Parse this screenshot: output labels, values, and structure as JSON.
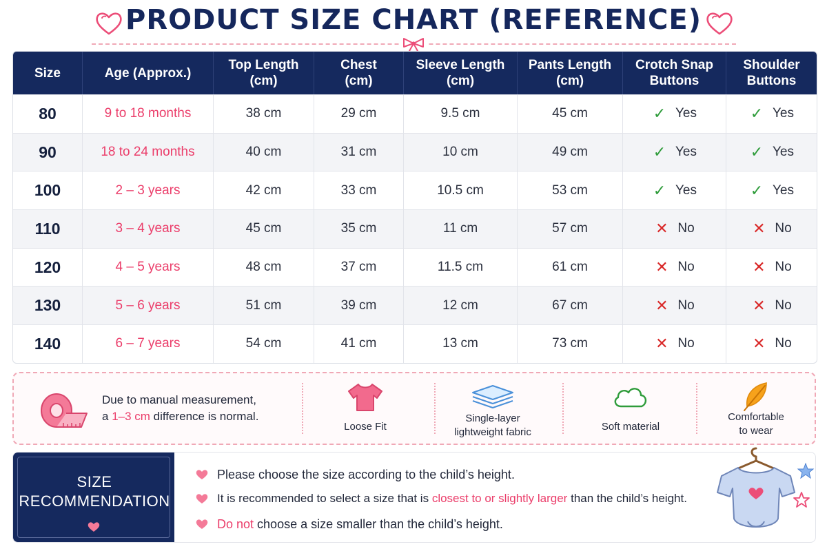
{
  "header": {
    "title": "PRODUCT SIZE CHART (REFERENCE)"
  },
  "table": {
    "headers": [
      [
        "Size"
      ],
      [
        "Age (Approx.)"
      ],
      [
        "Top Length",
        "(cm)"
      ],
      [
        "Chest",
        "(cm)"
      ],
      [
        "Sleeve Length",
        "(cm)"
      ],
      [
        "Pants Length",
        "(cm)"
      ],
      [
        "Crotch Snap",
        "Buttons"
      ],
      [
        "Shoulder",
        "Buttons"
      ]
    ],
    "rows": [
      {
        "size": "80",
        "age": "9 to 18 months",
        "top": "38 cm",
        "chest": "29 cm",
        "sleeve": "9.5 cm",
        "pants": "45 cm",
        "crotch": "Yes",
        "shoulder": "Yes"
      },
      {
        "size": "90",
        "age": "18 to 24 months",
        "top": "40 cm",
        "chest": "31 cm",
        "sleeve": "10 cm",
        "pants": "49 cm",
        "crotch": "Yes",
        "shoulder": "Yes"
      },
      {
        "size": "100",
        "age": "2 – 3 years",
        "top": "42 cm",
        "chest": "33 cm",
        "sleeve": "10.5 cm",
        "pants": "53 cm",
        "crotch": "Yes",
        "shoulder": "Yes"
      },
      {
        "size": "110",
        "age": "3 – 4 years",
        "top": "45 cm",
        "chest": "35 cm",
        "sleeve": "11 cm",
        "pants": "57 cm",
        "crotch": "No",
        "shoulder": "No"
      },
      {
        "size": "120",
        "age": "4 – 5 years",
        "top": "48 cm",
        "chest": "37 cm",
        "sleeve": "11.5 cm",
        "pants": "61 cm",
        "crotch": "No",
        "shoulder": "No"
      },
      {
        "size": "130",
        "age": "5 – 6 years",
        "top": "51 cm",
        "chest": "39 cm",
        "sleeve": "12 cm",
        "pants": "67 cm",
        "crotch": "No",
        "shoulder": "No"
      },
      {
        "size": "140",
        "age": "6 – 7 years",
        "top": "54 cm",
        "chest": "41 cm",
        "sleeve": "13 cm",
        "pants": "73 cm",
        "crotch": "No",
        "shoulder": "No"
      }
    ],
    "marks": {
      "yes": "✓",
      "no": "✕"
    }
  },
  "info": {
    "note_line1": "Due to manual measurement,",
    "note_prefix": "a ",
    "note_highlight": "1–3 cm",
    "note_suffix": " difference is normal.",
    "features": [
      {
        "icon": "tshirt-icon",
        "line1": "Loose Fit",
        "line2": ""
      },
      {
        "icon": "fabric-layer-icon",
        "line1": "Single-layer",
        "line2": "lightweight fabric"
      },
      {
        "icon": "cloud-icon",
        "line1": "Soft material",
        "line2": ""
      },
      {
        "icon": "feather-icon",
        "line1": "Comfortable",
        "line2": "to wear"
      }
    ]
  },
  "recommendation": {
    "title_line1": "SIZE",
    "title_line2": "RECOMMENDATION",
    "item1": "Please choose the size according to the child’s height.",
    "item2_before": "It is recommended to select a size that is ",
    "item2_highlight": "closest to or slightly larger",
    "item2_after": " than the child’s height.",
    "item3_highlight": "Do not",
    "item3_after": " choose a size smaller than the child’s height."
  },
  "colors": {
    "navy": "#15295e",
    "pink": "#eb3d6a",
    "yes_green": "#2f9c3b",
    "no_red": "#d92828"
  }
}
